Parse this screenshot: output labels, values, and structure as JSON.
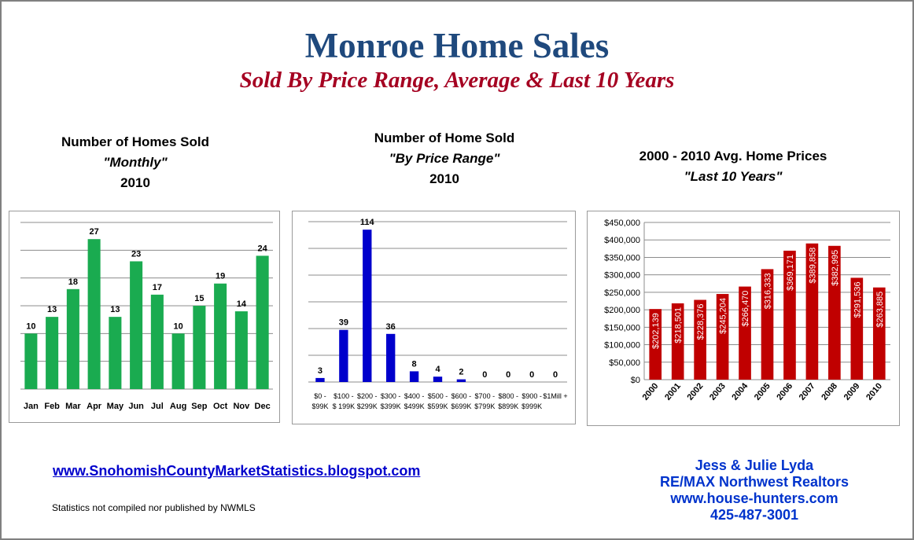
{
  "title": "Monroe Home Sales",
  "subtitle": "Sold By Price Range, Average & Last 10 Years",
  "charts": {
    "monthly": {
      "line1": "Number of Homes Sold",
      "line2": "\"Monthly\"",
      "line3": "2010"
    },
    "price": {
      "line1": "Number of Home Sold",
      "line2": "\"By Price Range\"",
      "line3": "2010"
    },
    "avg": {
      "line1": "2000 - 2010 Avg. Home Prices",
      "line2": "\"Last 10 Years\""
    }
  },
  "chart_data": [
    {
      "id": "monthly",
      "type": "bar",
      "categories": [
        "Jan",
        "Feb",
        "Mar",
        "Apr",
        "May",
        "Jun",
        "Jul",
        "Aug",
        "Sep",
        "Oct",
        "Nov",
        "Dec"
      ],
      "values": [
        10,
        13,
        18,
        27,
        13,
        23,
        17,
        10,
        15,
        19,
        14,
        24
      ],
      "ylim": [
        0,
        30
      ],
      "grid": true,
      "data_labels": true,
      "color": "#1aab50"
    },
    {
      "id": "price",
      "type": "bar",
      "categories": [
        "$0 - $99K",
        "$100 - $ 199K",
        "$200 - $299K",
        "$300 - $399K",
        "$400 - $499K",
        "$500 - $599K",
        "$600 - $699K",
        "$700 - $799K",
        "$800 - $899K",
        "$900 - $999K",
        "$1Mill +"
      ],
      "values": [
        3,
        39,
        114,
        36,
        8,
        4,
        2,
        0,
        0,
        0,
        0
      ],
      "ylim": [
        0,
        120
      ],
      "grid": true,
      "data_labels": true,
      "color": "#0000cc"
    },
    {
      "id": "avg",
      "type": "bar",
      "categories": [
        "2000",
        "2001",
        "2002",
        "2003",
        "2004",
        "2005",
        "2006",
        "2007",
        "2008",
        "2009",
        "2010"
      ],
      "values": [
        202139,
        218501,
        228376,
        245204,
        266470,
        316333,
        369171,
        389858,
        382995,
        291536,
        263885
      ],
      "value_labels": [
        "$202,139",
        "$218,501",
        "$228,376",
        "$245,204",
        "$266,470",
        "$316,333",
        "$369,171",
        "$389,858",
        "$382,995",
        "$291,536",
        "$263,885"
      ],
      "ylim": [
        0,
        450000
      ],
      "yticks": [
        "$0",
        "$50,000",
        "$100,000",
        "$150,000",
        "$200,000",
        "$250,000",
        "$300,000",
        "$350,000",
        "$400,000",
        "$450,000"
      ],
      "grid": true,
      "data_labels": true,
      "color": "#c00000"
    }
  ],
  "footer": {
    "link": "www.SnohomishCountyMarketStatistics.blogspot.com",
    "note": "Statistics not compiled nor published by NWMLS",
    "contact": [
      "Jess & Julie Lyda",
      "RE/MAX Northwest Realtors",
      "www.house-hunters.com",
      "425-487-3001"
    ]
  }
}
